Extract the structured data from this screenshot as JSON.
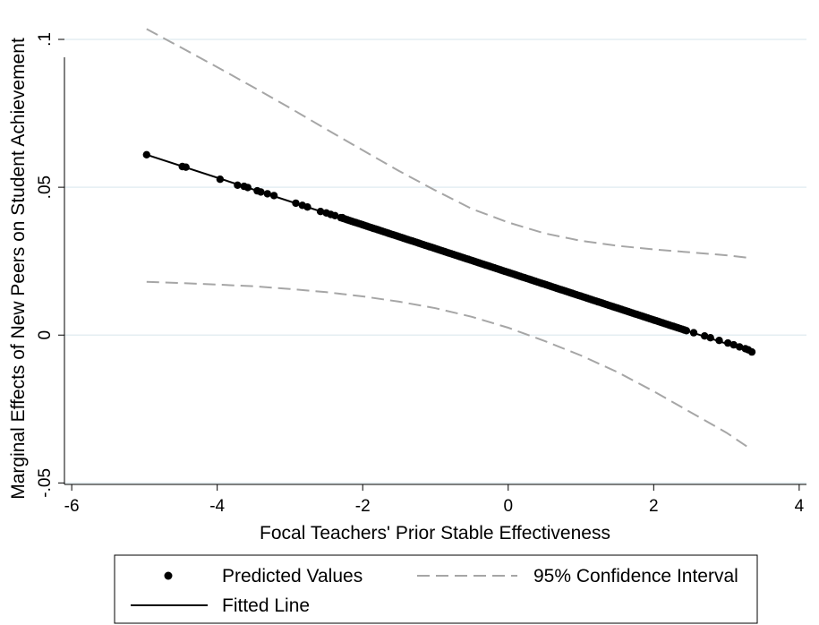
{
  "chart_data": {
    "type": "line",
    "title": "",
    "xlabel": "Focal Teachers' Prior Stable Effectiveness",
    "ylabel": "Marginal Effects of New Peers on Student Achievement",
    "xlim": [
      -6.1,
      4.1
    ],
    "ylim": [
      -0.0505,
      0.1
    ],
    "x_ticks": [
      -6,
      -4,
      -2,
      0,
      2,
      4
    ],
    "x_tick_labels": [
      "-6",
      "-4",
      "-2",
      "0",
      "2",
      "4"
    ],
    "y_ticks": [
      -0.05,
      0,
      0.05,
      0.1
    ],
    "y_tick_labels": [
      "-.05",
      "0",
      ".05",
      ".1"
    ],
    "grid": true,
    "legend_position": "bottom",
    "colors": {
      "points": "#000000",
      "fitted": "#000000",
      "ci": "#a6a6a6",
      "grid": "#e4eef2"
    },
    "series": [
      {
        "name": "Predicted Values",
        "kind": "scatter",
        "x": [
          -4.97,
          -4.48,
          -4.43,
          -3.96,
          -3.72,
          -3.63,
          -3.58,
          -3.45,
          -3.4,
          -3.31,
          -3.22,
          -2.92,
          -2.83,
          -2.76,
          -2.58,
          -2.5,
          -2.44,
          -2.38,
          -2.28
        ],
        "y": [
          0.061,
          0.057,
          0.0568,
          0.0527,
          0.0507,
          0.0503,
          0.0499,
          0.0488,
          0.0484,
          0.0478,
          0.0472,
          0.0446,
          0.0439,
          0.0433,
          0.0418,
          0.0413,
          0.0408,
          0.0404,
          0.0397
        ],
        "dense_range": {
          "x": [
            -2.3,
            2.45
          ],
          "y_start": 0.0397,
          "y_end": 0.0015
        },
        "x_tail": [
          2.55,
          2.7,
          2.78,
          2.9,
          3.02,
          3.1,
          3.18,
          3.26,
          3.3,
          3.35
        ],
        "y_tail": [
          0.0008,
          -0.0003,
          -0.0009,
          -0.0018,
          -0.0027,
          -0.0033,
          -0.004,
          -0.0046,
          -0.005,
          -0.0057
        ]
      },
      {
        "name": "Fitted Line",
        "kind": "line",
        "x": [
          -4.97,
          3.35
        ],
        "y": [
          0.061,
          -0.0057
        ]
      },
      {
        "name": "95% Confidence Interval",
        "kind": "dashed",
        "upper": {
          "x": [
            -4.97,
            -4.5,
            -4,
            -3.5,
            -3,
            -2.5,
            -2,
            -1.5,
            -1,
            -0.5,
            0,
            0.5,
            1,
            1.5,
            2,
            2.5,
            3,
            3.35
          ],
          "y": [
            0.1035,
            0.0973,
            0.0906,
            0.0838,
            0.0768,
            0.0696,
            0.0625,
            0.0555,
            0.0489,
            0.0427,
            0.0381,
            0.0344,
            0.0319,
            0.0302,
            0.029,
            0.028,
            0.027,
            0.026
          ]
        },
        "lower": {
          "x": [
            -4.97,
            -4.5,
            -4,
            -3.5,
            -3,
            -2.5,
            -2,
            -1.5,
            -1,
            -0.5,
            0,
            0.5,
            1,
            1.5,
            2,
            2.5,
            3,
            3.35
          ],
          "y": [
            0.018,
            0.0176,
            0.0171,
            0.0165,
            0.0156,
            0.0145,
            0.0131,
            0.0113,
            0.0091,
            0.0062,
            0.0025,
            -0.002,
            -0.0069,
            -0.0125,
            -0.019,
            -0.026,
            -0.033,
            -0.0388
          ]
        }
      }
    ],
    "legend": [
      {
        "label": "Predicted Values",
        "symbol": "dot"
      },
      {
        "label": "95% Confidence Interval",
        "symbol": "dashed"
      },
      {
        "label": "Fitted Line",
        "symbol": "solid"
      }
    ]
  }
}
